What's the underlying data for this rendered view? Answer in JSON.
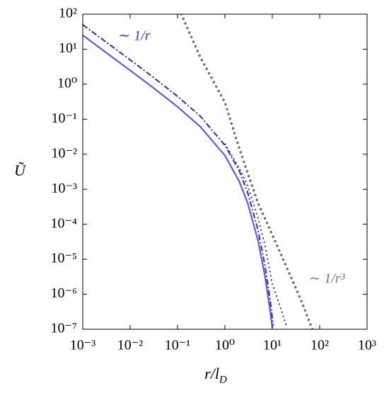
{
  "chart_data": {
    "type": "line",
    "x_label": "r/l",
    "x_label_sub": "D",
    "y_label": "Ũ",
    "xscale": "log",
    "yscale": "log",
    "xlim": [
      0.001,
      1000
    ],
    "ylim": [
      1e-07,
      100
    ],
    "xticks": [
      {
        "value": 0.001,
        "label": "10⁻³"
      },
      {
        "value": 0.01,
        "label": "10⁻²"
      },
      {
        "value": 0.1,
        "label": "10⁻¹"
      },
      {
        "value": 1,
        "label": "10⁰"
      },
      {
        "value": 10,
        "label": "10¹"
      },
      {
        "value": 100,
        "label": "10²"
      },
      {
        "value": 1000,
        "label": "10³"
      }
    ],
    "yticks": [
      {
        "value": 1e-07,
        "label": "10⁻⁷"
      },
      {
        "value": 1e-06,
        "label": "10⁻⁶"
      },
      {
        "value": 1e-05,
        "label": "10⁻⁵"
      },
      {
        "value": 0.0001,
        "label": "10⁻⁴"
      },
      {
        "value": 0.001,
        "label": "10⁻³"
      },
      {
        "value": 0.01,
        "label": "10⁻²"
      },
      {
        "value": 0.1,
        "label": "10⁻¹"
      },
      {
        "value": 1,
        "label": "10⁰"
      },
      {
        "value": 10,
        "label": "10¹"
      },
      {
        "value": 100,
        "label": "10²"
      }
    ],
    "annotations": [
      "∼ 1/r",
      "∼ 1/r³"
    ],
    "series": [
      {
        "color": "#5a5ae6",
        "style": "solid",
        "x": [
          0.001,
          0.003,
          0.01,
          0.03,
          0.1,
          0.3,
          1,
          2,
          3,
          5,
          7,
          9,
          10
        ],
        "values": [
          25,
          8.3,
          2.48,
          0.81,
          0.226,
          0.0617,
          0.0092,
          0.00169,
          0.000415,
          3.4e-05,
          3.3e-06,
          3.4e-07,
          1.1e-07
        ]
      },
      {
        "color": "#2a2ad0",
        "style": "dashdot",
        "x": [
          0.001,
          0.003,
          0.01,
          0.03,
          0.1,
          0.3,
          1,
          2,
          3,
          5,
          7,
          9,
          10.5
        ],
        "values": [
          50,
          16.6,
          4.95,
          1.62,
          0.45,
          0.123,
          0.018,
          0.0034,
          0.00083,
          6.8e-05,
          6.6e-06,
          6.9e-07,
          1.3e-07
        ]
      },
      {
        "color": "#2a2ad0",
        "style": "dotted",
        "x": [
          1,
          2,
          3,
          5,
          7,
          10,
          15,
          20
        ],
        "values": [
          0.02,
          0.004,
          0.0013,
          0.00015,
          2.5e-05,
          2e-06,
          4e-07,
          1.2e-07
        ]
      },
      {
        "color": "#6e6e6e",
        "style": "bigdots",
        "x": [
          0.12,
          0.3,
          1,
          2,
          3,
          5,
          10,
          20,
          40,
          70
        ],
        "values": [
          100,
          6,
          0.3,
          0.015,
          0.003,
          0.0004,
          5e-05,
          6e-06,
          7e-07,
          1e-07
        ]
      }
    ]
  }
}
